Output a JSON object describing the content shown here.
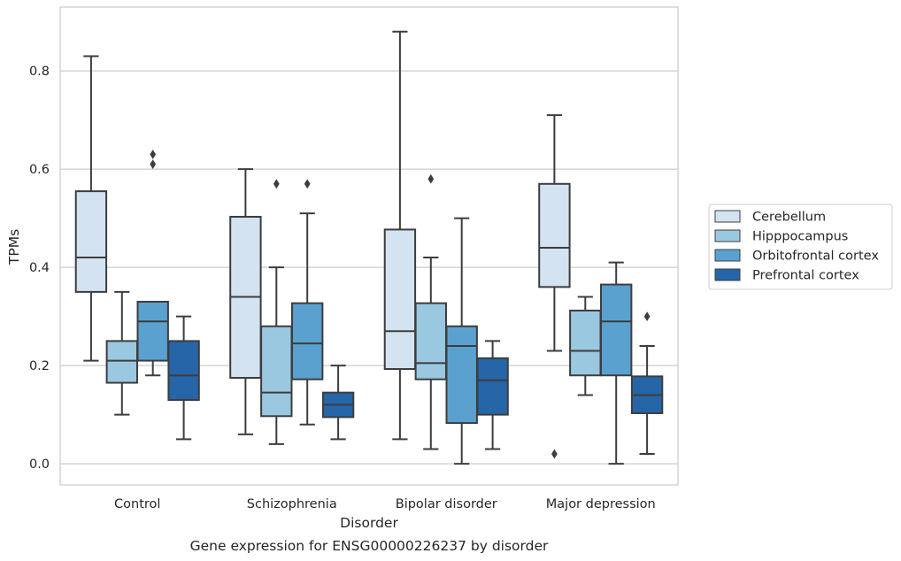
{
  "chart_data": {
    "type": "box",
    "caption": "Gene expression for ENSG00000226237 by disorder",
    "xlabel": "Disorder",
    "ylabel": "TPMs",
    "ylim": [
      -0.043,
      0.93
    ],
    "yticks": [
      0.0,
      0.2,
      0.4,
      0.6,
      0.8
    ],
    "ytick_labels": [
      "0.0",
      "0.2",
      "0.4",
      "0.6",
      "0.8"
    ],
    "grid": "horizontal",
    "legend_position": "right",
    "categories": [
      "Control",
      "Schizophrenia",
      "Bipolar disorder",
      "Major depression"
    ],
    "series": [
      {
        "name": "Cerebellum",
        "color": "#d3e3f2",
        "boxes": [
          {
            "whislo": 0.21,
            "q1": 0.35,
            "med": 0.42,
            "q3": 0.555,
            "whishi": 0.83,
            "fliers": []
          },
          {
            "whislo": 0.06,
            "q1": 0.175,
            "med": 0.34,
            "q3": 0.503,
            "whishi": 0.6,
            "fliers": []
          },
          {
            "whislo": 0.05,
            "q1": 0.193,
            "med": 0.27,
            "q3": 0.477,
            "whishi": 0.88,
            "fliers": []
          },
          {
            "whislo": 0.23,
            "q1": 0.36,
            "med": 0.44,
            "q3": 0.57,
            "whishi": 0.71,
            "fliers": [
              0.02
            ]
          }
        ]
      },
      {
        "name": "Hipppocampus",
        "color": "#9ac8e0",
        "boxes": [
          {
            "whislo": 0.1,
            "q1": 0.165,
            "med": 0.21,
            "q3": 0.25,
            "whishi": 0.35,
            "fliers": []
          },
          {
            "whislo": 0.04,
            "q1": 0.097,
            "med": 0.145,
            "q3": 0.28,
            "whishi": 0.4,
            "fliers": [
              0.57
            ]
          },
          {
            "whislo": 0.03,
            "q1": 0.172,
            "med": 0.205,
            "q3": 0.327,
            "whishi": 0.42,
            "fliers": [
              0.58
            ]
          },
          {
            "whislo": 0.14,
            "q1": 0.18,
            "med": 0.23,
            "q3": 0.312,
            "whishi": 0.34,
            "fliers": []
          }
        ]
      },
      {
        "name": "Orbitofrontal cortex",
        "color": "#5aa1cf",
        "boxes": [
          {
            "whislo": 0.18,
            "q1": 0.21,
            "med": 0.29,
            "q3": 0.33,
            "whishi": 0.33,
            "fliers": [
              0.61,
              0.63
            ]
          },
          {
            "whislo": 0.08,
            "q1": 0.172,
            "med": 0.245,
            "q3": 0.327,
            "whishi": 0.51,
            "fliers": [
              0.57
            ]
          },
          {
            "whislo": 0.0,
            "q1": 0.083,
            "med": 0.24,
            "q3": 0.28,
            "whishi": 0.5,
            "fliers": []
          },
          {
            "whislo": 0.0,
            "q1": 0.18,
            "med": 0.29,
            "q3": 0.365,
            "whishi": 0.41,
            "fliers": []
          }
        ]
      },
      {
        "name": "Prefrontal cortex",
        "color": "#2565a8",
        "boxes": [
          {
            "whislo": 0.05,
            "q1": 0.13,
            "med": 0.18,
            "q3": 0.25,
            "whishi": 0.3,
            "fliers": []
          },
          {
            "whislo": 0.05,
            "q1": 0.095,
            "med": 0.12,
            "q3": 0.145,
            "whishi": 0.2,
            "fliers": []
          },
          {
            "whislo": 0.03,
            "q1": 0.1,
            "med": 0.17,
            "q3": 0.215,
            "whishi": 0.25,
            "fliers": []
          },
          {
            "whislo": 0.02,
            "q1": 0.103,
            "med": 0.14,
            "q3": 0.178,
            "whishi": 0.24,
            "fliers": [
              0.3
            ]
          }
        ]
      }
    ]
  }
}
